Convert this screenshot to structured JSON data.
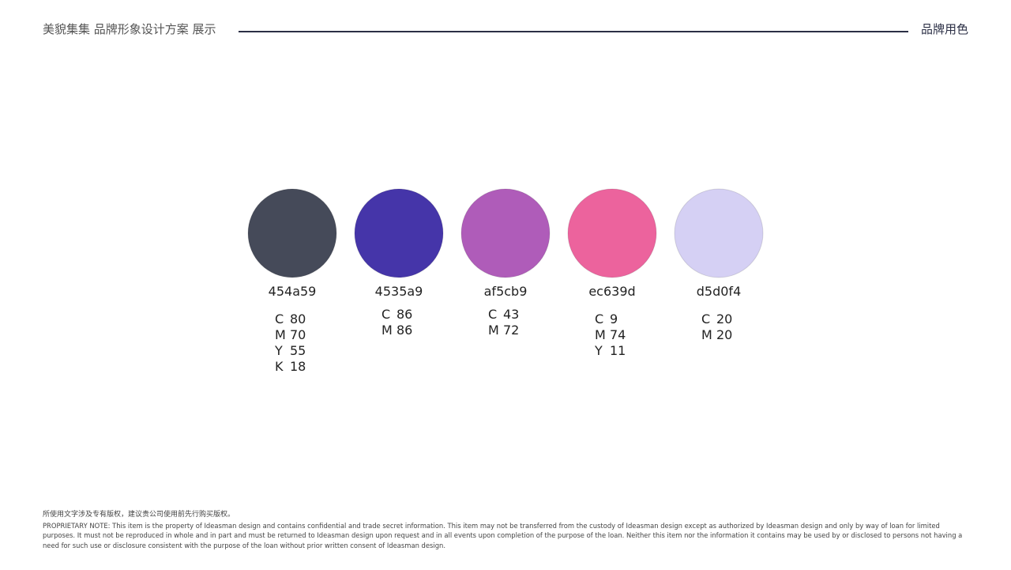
{
  "header": {
    "title": "美貌集集 品牌形象设计方案 展示",
    "section": "品牌用色"
  },
  "swatches": [
    {
      "hex": "454a59",
      "color": "#454a59",
      "cmyk": [
        {
          "label": "C",
          "value": 80
        },
        {
          "label": "M",
          "value": 70
        },
        {
          "label": "Y",
          "value": 55
        },
        {
          "label": "K",
          "value": 18
        }
      ]
    },
    {
      "hex": "4535a9",
      "color": "#4535a9",
      "cmyk": [
        {
          "label": "C",
          "value": 86
        },
        {
          "label": "M",
          "value": 86
        }
      ]
    },
    {
      "hex": "af5cb9",
      "color": "#af5cb9",
      "cmyk": [
        {
          "label": "C",
          "value": 43
        },
        {
          "label": "M",
          "value": 72
        }
      ]
    },
    {
      "hex": "ec639d",
      "color": "#ec639d",
      "cmyk": [
        {
          "label": "C",
          "value": 9
        },
        {
          "label": "M",
          "value": 74
        },
        {
          "label": "Y",
          "value": 11
        }
      ]
    },
    {
      "hex": "d5d0f4",
      "color": "#d5d0f4",
      "cmyk": [
        {
          "label": "C",
          "value": 20
        },
        {
          "label": "M",
          "value": 20
        }
      ]
    }
  ],
  "footer": {
    "note": "所使用文字涉及专有版权，建议贵公司使用前先行购买版权。",
    "proprietary": "PROPRIETARY NOTE: This item is the property of Ideasman design and contains confidential and trade secret information. This item may not be transferred from the custody of Ideasman design except as authorized by Ideasman design and only by way of loan for limited purposes. It must not be reproduced in whole and in part and must be returned to Ideasman design upon request and in all events upon completion of the purpose of the loan. Neither this item nor the information it contains may be used by or disclosed to persons not having a need for such use or disclosure consistent with the purpose of the loan without prior written consent of Ideasman design."
  }
}
